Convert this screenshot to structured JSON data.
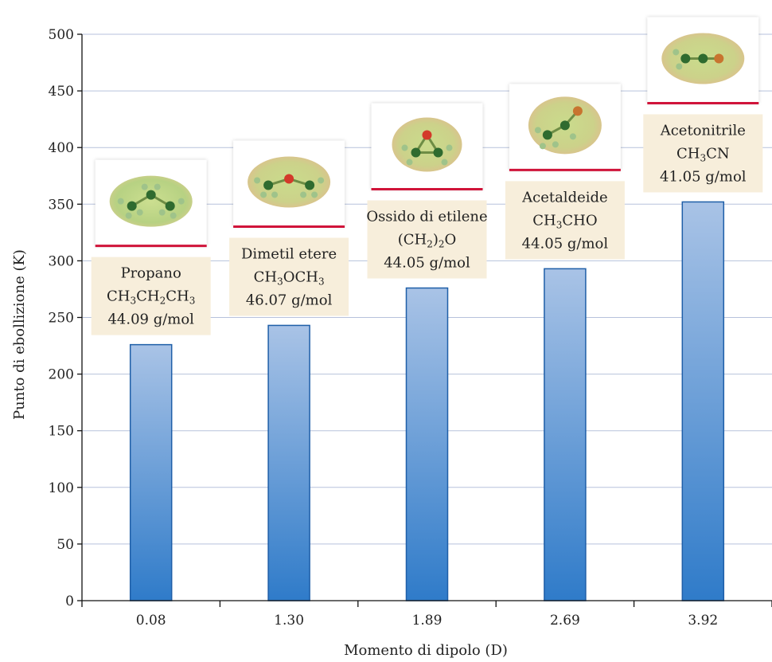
{
  "chart_data": {
    "type": "bar",
    "title": "",
    "xlabel": "Momento di dipolo (D)",
    "ylabel": "Punto di ebollizione (K)",
    "ylim": [
      0,
      500
    ],
    "yticks": [
      0,
      50,
      100,
      150,
      200,
      250,
      300,
      350,
      400,
      450,
      500
    ],
    "grid": true,
    "categories": [
      "0.08",
      "1.30",
      "1.89",
      "2.69",
      "3.92"
    ],
    "values": [
      226,
      243,
      276,
      293,
      352
    ],
    "bar_color": "#5b8fd0",
    "annotations": [
      {
        "category": "0.08",
        "name": "Propano",
        "formula": [
          [
            "CH",
            ""
          ],
          [
            "3",
            "sub"
          ],
          [
            "CH",
            ""
          ],
          [
            "2",
            "sub"
          ],
          [
            "CH",
            ""
          ],
          [
            "3",
            "sub"
          ]
        ],
        "mass": "44.09 g/mol",
        "molecule_icon": "propane-molecule-icon"
      },
      {
        "category": "1.30",
        "name": "Dimetil etere",
        "formula": [
          [
            "CH",
            ""
          ],
          [
            "3",
            "sub"
          ],
          [
            "OCH",
            ""
          ],
          [
            "3",
            "sub"
          ]
        ],
        "mass": "46.07 g/mol",
        "molecule_icon": "dimethyl-ether-molecule-icon"
      },
      {
        "category": "1.89",
        "name": "Ossido di etilene",
        "formula": [
          [
            "(CH",
            ""
          ],
          [
            "2",
            "sub"
          ],
          [
            ")",
            ""
          ],
          [
            "2",
            "sub"
          ],
          [
            "O",
            ""
          ]
        ],
        "mass": "44.05 g/mol",
        "molecule_icon": "ethylene-oxide-molecule-icon"
      },
      {
        "category": "2.69",
        "name": "Acetaldeide",
        "formula": [
          [
            "CH",
            ""
          ],
          [
            "3",
            "sub"
          ],
          [
            "CHO",
            ""
          ]
        ],
        "mass": "44.05 g/mol",
        "molecule_icon": "acetaldehyde-molecule-icon"
      },
      {
        "category": "3.92",
        "name": "Acetonitrile",
        "formula": [
          [
            "CH",
            ""
          ],
          [
            "3",
            "sub"
          ],
          [
            "CN",
            ""
          ]
        ],
        "mass": "41.05 g/mol",
        "molecule_icon": "acetonitrile-molecule-icon"
      }
    ]
  }
}
